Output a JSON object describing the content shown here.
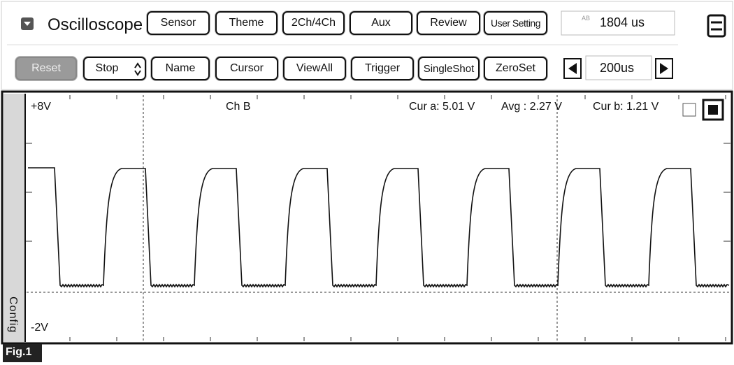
{
  "header": {
    "title": "Oscilloscope",
    "buttons": [
      "Sensor",
      "Theme",
      "2Ch/4Ch",
      "Aux",
      "Review",
      "User Setting"
    ],
    "display": {
      "icon": "AB",
      "value": "1804 us"
    }
  },
  "toolbar": {
    "buttons": [
      "Reset",
      "Stop",
      "Name",
      "Cursor",
      "ViewAll",
      "Trigger",
      "SingleShot",
      "ZeroSet"
    ],
    "timebase": "200us"
  },
  "screen": {
    "y_max_label": "+8V",
    "y_min_label": "-2V",
    "channel": "Ch B",
    "readouts": [
      "Cur a: 5.01 V",
      "Avg : 2.27 V",
      "Cur b: 1.21 V"
    ],
    "side_tab": "Config"
  },
  "figure_label": "Fig.1"
}
